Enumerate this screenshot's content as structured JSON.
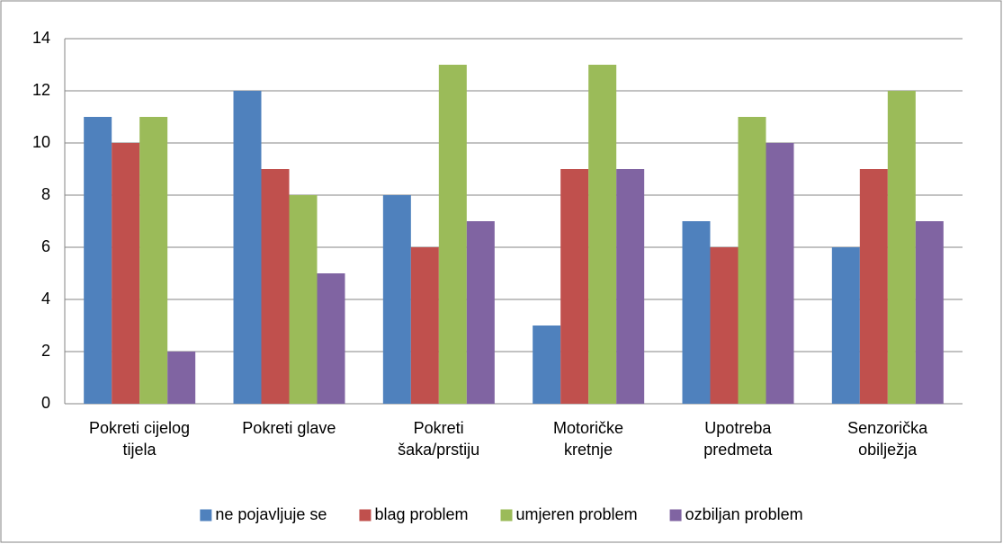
{
  "chart_data": {
    "type": "bar",
    "categories": [
      "Pokreti cijelog\ntijela",
      "Pokreti glave",
      "Pokreti\nšaka/prstiju",
      "Motoričke\nkretnje",
      "Upotreba\npredmeta",
      "Senzorička\nobilježja"
    ],
    "series": [
      {
        "name": "ne pojavljuje se",
        "color": "#4f81bd",
        "values": [
          11,
          12,
          8,
          3,
          7,
          6
        ]
      },
      {
        "name": "blag problem",
        "color": "#c0504d",
        "values": [
          10,
          9,
          6,
          9,
          6,
          9
        ]
      },
      {
        "name": "umjeren problem",
        "color": "#9bbb59",
        "values": [
          11,
          8,
          13,
          13,
          11,
          12
        ]
      },
      {
        "name": "ozbiljan problem",
        "color": "#8064a2",
        "values": [
          2,
          5,
          7,
          9,
          10,
          7
        ]
      }
    ],
    "ylim": [
      0,
      14
    ],
    "yticks": [
      0,
      2,
      4,
      6,
      8,
      10,
      12,
      14
    ],
    "grid": true,
    "legend": "bottom"
  }
}
